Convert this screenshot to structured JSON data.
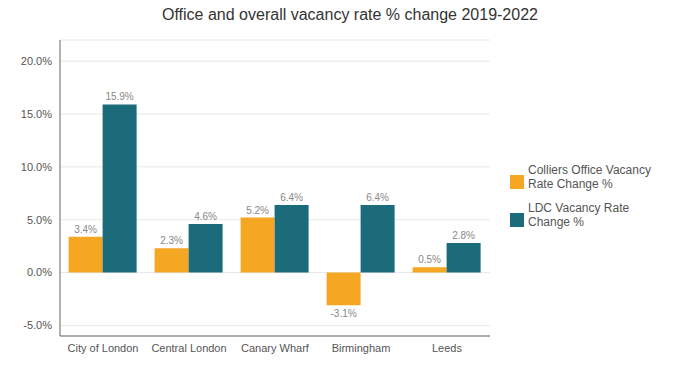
{
  "chart_data": {
    "type": "bar",
    "title": "Office and overall vacancy rate % change 2019-2022",
    "categories": [
      "City of London",
      "Central London",
      "Canary Wharf",
      "Birmingham",
      "Leeds"
    ],
    "series": [
      {
        "name": "Colliers Office Vacancy\nRate Change %",
        "color": "#F5A623",
        "values": [
          3.4,
          2.3,
          5.2,
          -3.1,
          0.5
        ],
        "value_labels": [
          "3.4%",
          "2.3%",
          "5.2%",
          "-3.1%",
          "0.5%"
        ]
      },
      {
        "name": "LDC Vacancy Rate\nChange %",
        "color": "#1B6B7B",
        "values": [
          15.9,
          4.6,
          6.4,
          6.4,
          2.8
        ],
        "value_labels": [
          "15.9%",
          "4.6%",
          "6.4%",
          "6.4%",
          "2.8%"
        ]
      }
    ],
    "ylim": [
      -6.0,
      22.0
    ],
    "yticks": [
      {
        "value": -5.0,
        "label": "-5.0%"
      },
      {
        "value": 0.0,
        "label": "0.0%"
      },
      {
        "value": 5.0,
        "label": "5.0%"
      },
      {
        "value": 10.0,
        "label": "10.0%"
      },
      {
        "value": 15.0,
        "label": "15.0%"
      },
      {
        "value": 20.0,
        "label": "20.0%"
      }
    ],
    "grid": true,
    "legend": "right",
    "data_labels": true
  }
}
